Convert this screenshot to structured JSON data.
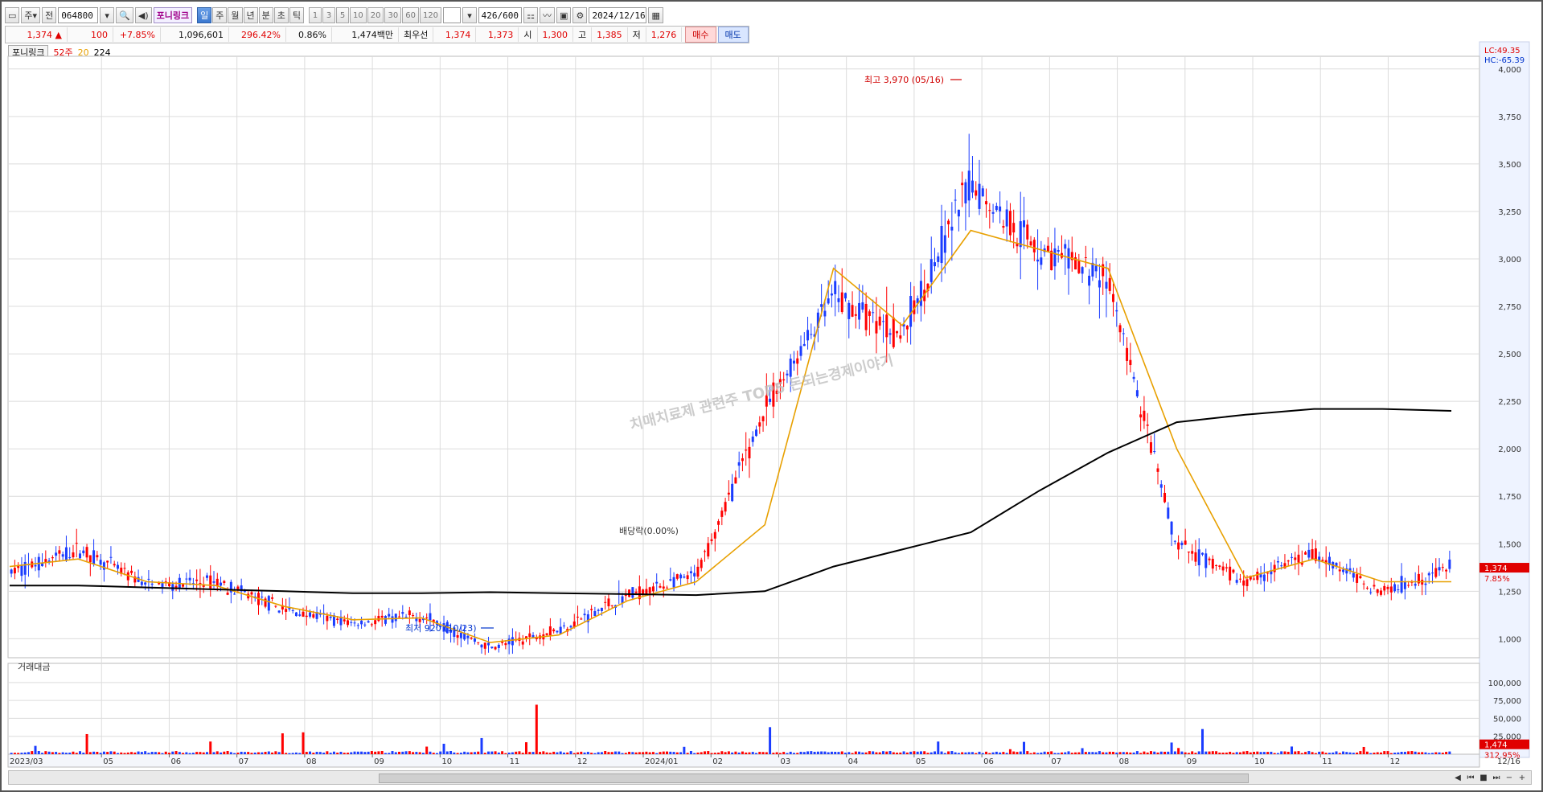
{
  "toolbar": {
    "market_label": "주",
    "prev_label": "전",
    "code": "064800",
    "stock_name": "포니링크",
    "periods": [
      "일",
      "주",
      "월",
      "년",
      "분",
      "초",
      "틱"
    ],
    "active_period": "일",
    "intervals": [
      "1",
      "3",
      "5",
      "10",
      "20",
      "30",
      "60",
      "120"
    ],
    "count_display": "426",
    "count_max": "/600",
    "date": "2024/12/16"
  },
  "quote": {
    "price": "1,374",
    "direction": "▲",
    "change": "100",
    "change_pct": "+7.85%",
    "volume": "1,096,601",
    "volume_pct": "296.42%",
    "turnover_pct": "0.86%",
    "amount": "1,474백만",
    "best_bid_label": "최우선",
    "best_ask": "1,374",
    "best_bid": "1,373",
    "open_label": "시",
    "open": "1,300",
    "high_label": "고",
    "high": "1,385",
    "low_label": "저",
    "low": "1,276",
    "buy_label": "매수",
    "sell_label": "매도"
  },
  "legend": {
    "name": "포니링크",
    "ma1": "52주",
    "ma2": "20",
    "ma3": "224",
    "colors": {
      "ma1": "#e00000",
      "ma2": "#e8a000",
      "ma3": "#000000"
    }
  },
  "volume_panel": {
    "title": "거래대금"
  },
  "colors": {
    "up": "#ff0000",
    "down": "#1a3cff",
    "ma20": "#e8a000",
    "ma224": "#000000",
    "grid": "#dcdcdc",
    "axis_bg": "#eef3ff"
  },
  "chart_data": {
    "type": "candlestick",
    "title": "",
    "watermark": "치매치료제 관련주 TOP5 돈되는경제이야기",
    "ylim": [
      900,
      4050
    ],
    "y_ticks": [
      "4,000",
      "3,750",
      "3,500",
      "3,250",
      "3,000",
      "2,750",
      "2,500",
      "2,250",
      "2,000",
      "1,750",
      "1,500",
      "1,250",
      "1,000"
    ],
    "y_tick_values": [
      4000,
      3750,
      3500,
      3250,
      3000,
      2750,
      2500,
      2250,
      2000,
      1750,
      1500,
      1250,
      1000
    ],
    "x_labels": [
      "2023/03",
      "05",
      "06",
      "07",
      "08",
      "09",
      "10",
      "11",
      "12",
      "2024/01",
      "02",
      "03",
      "04",
      "05",
      "06",
      "07",
      "08",
      "09",
      "10",
      "11",
      "12",
      "12/16"
    ],
    "lc": "LC:49.35",
    "hc": "HC:-65.39",
    "current_price_tag": "1,374",
    "current_pct_tag": "7.85%",
    "annotations": {
      "high": "최고 3,970 (05/16)",
      "low": "최저 920 (10/23)",
      "dividend": "배당락(0.00%)"
    },
    "price_series": {
      "description": "approximate monthly close levels",
      "months": [
        "2023/03",
        "04",
        "05",
        "06",
        "07",
        "08",
        "09",
        "10",
        "11",
        "12",
        "2024/01",
        "02",
        "03",
        "04",
        "05",
        "06",
        "07",
        "08",
        "09",
        "10",
        "11",
        "12"
      ],
      "close": [
        1350,
        1470,
        1280,
        1300,
        1150,
        1080,
        1120,
        950,
        1050,
        1230,
        1330,
        2200,
        2800,
        2600,
        3400,
        3050,
        2900,
        1500,
        1300,
        1450,
        1250,
        1374
      ]
    },
    "ma20": [
      1380,
      1420,
      1300,
      1280,
      1170,
      1100,
      1110,
      980,
      1020,
      1200,
      1300,
      1600,
      2950,
      2650,
      3150,
      3050,
      2950,
      2000,
      1320,
      1420,
      1300,
      1300
    ],
    "ma224": [
      1280,
      1280,
      1270,
      1260,
      1250,
      1240,
      1240,
      1245,
      1240,
      1235,
      1230,
      1250,
      1380,
      1470,
      1560,
      1780,
      1980,
      2140,
      2180,
      2210,
      2210,
      2200
    ],
    "volume_ticks": [
      "100,000",
      "75,000",
      "50,000",
      "25,000"
    ],
    "volume_tick_values": [
      100000,
      75000,
      50000,
      25000
    ],
    "volume_tag_value": "1,474",
    "volume_tag_pct": "312.95%"
  }
}
